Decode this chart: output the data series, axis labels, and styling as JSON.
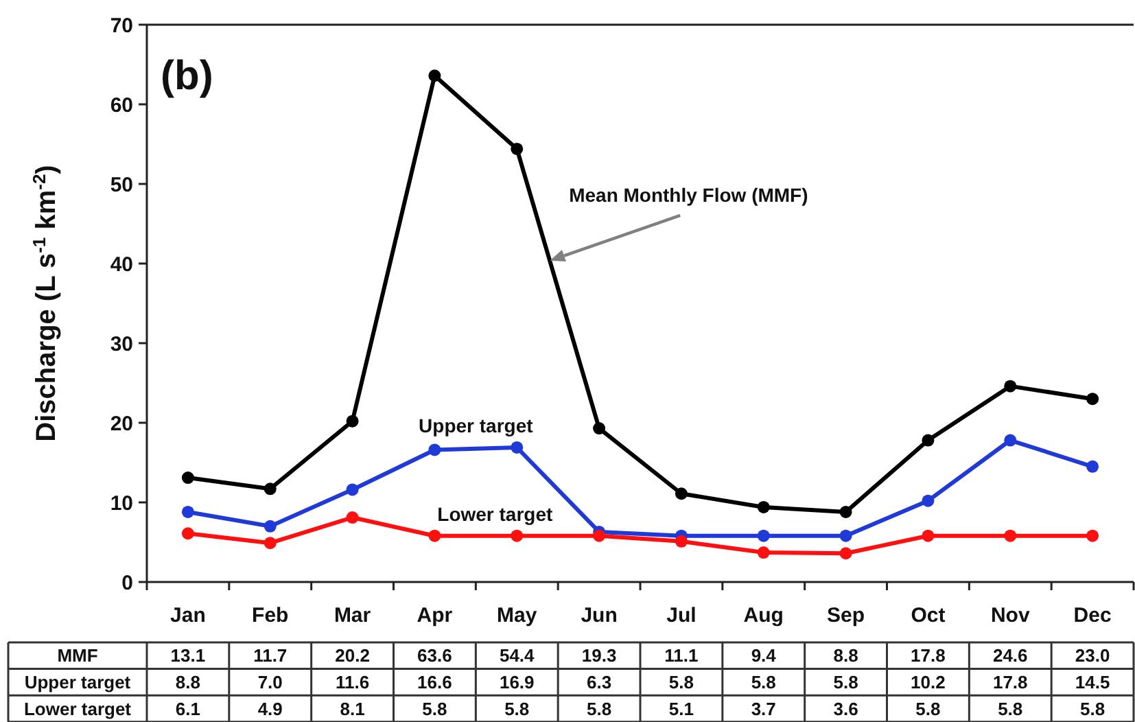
{
  "chart_data": {
    "type": "line",
    "title": "(b)",
    "ylabel": "Discharge (L s$^{-1}$ km$^{-2}$)",
    "categories": [
      "Jan",
      "Feb",
      "Mar",
      "Apr",
      "May",
      "Jun",
      "Jul",
      "Aug",
      "Sep",
      "Oct",
      "Nov",
      "Dec"
    ],
    "series": [
      {
        "name": "Mean Monthly Flow (MMF)",
        "color": "#000000",
        "values": [
          13.1,
          11.7,
          20.2,
          63.6,
          54.4,
          19.3,
          11.1,
          9.4,
          8.8,
          17.8,
          24.6,
          23.0
        ],
        "value_labels": [
          "13.1",
          "11.7",
          "20.2",
          "63.6",
          "54.4",
          "19.3",
          "11.1",
          "9.4",
          "8.8",
          "17.8",
          "24.6",
          "23.0"
        ]
      },
      {
        "name": "Upper target",
        "color": "#1f3ad6",
        "values": [
          8.8,
          7.0,
          11.6,
          16.6,
          16.9,
          6.3,
          5.8,
          5.8,
          5.8,
          10.2,
          17.8,
          14.5
        ],
        "value_labels": [
          "8.8",
          "7.0",
          "11.6",
          "16.6",
          "16.9",
          "6.3",
          "5.8",
          "5.8",
          "5.8",
          "10.2",
          "17.8",
          "14.5"
        ]
      },
      {
        "name": "Lower target",
        "color": "#ff1010",
        "values": [
          6.1,
          4.9,
          8.1,
          5.8,
          5.8,
          5.8,
          5.1,
          3.7,
          3.6,
          5.8,
          5.8,
          5.8
        ],
        "value_labels": [
          "6.1",
          "4.9",
          "8.1",
          "5.8",
          "5.8",
          "5.8",
          "5.1",
          "3.7",
          "3.6",
          "5.8",
          "5.8",
          "5.8"
        ]
      }
    ],
    "ylim": [
      0,
      70
    ],
    "yticks": [
      0,
      10,
      20,
      30,
      40,
      50,
      60,
      70
    ],
    "marker": "circle",
    "annotations": [
      "MMF"
    ]
  }
}
